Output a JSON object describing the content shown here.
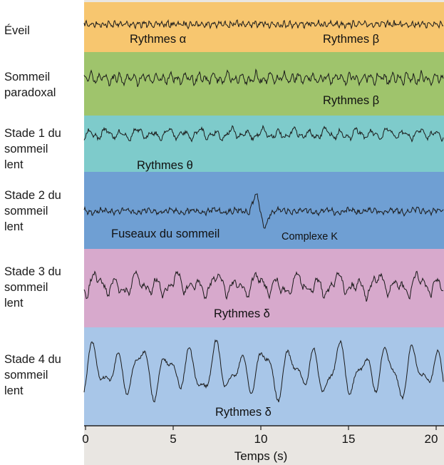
{
  "rows": [
    {
      "id": "eveil",
      "label": "Éveil",
      "color": "#f7c66f",
      "band_labels": [
        "Rythmes α",
        "Rythmes β"
      ]
    },
    {
      "id": "paradoxal",
      "label": "Sommeil\nparadoxal",
      "color": "#9fc46c",
      "band_labels": [
        "Rythmes β"
      ]
    },
    {
      "id": "stade1",
      "label": "Stade 1 du\nsommeil\nlent",
      "color": "#7ecbcb",
      "band_labels": [
        "Rythmes θ"
      ]
    },
    {
      "id": "stade2",
      "label": "Stade 2 du\nsommeil\nlent",
      "color": "#6f9fd3",
      "band_labels": [
        "Fuseaux du sommeil",
        "Complexe K"
      ]
    },
    {
      "id": "stade3",
      "label": "Stade 3 du\nsommeil\nlent",
      "color": "#d7a9cc",
      "band_labels": [
        "Rythmes δ"
      ]
    },
    {
      "id": "stade4",
      "label": "Stade 4 du\nsommeil\nlent",
      "color": "#a8c6e8",
      "band_labels": [
        "Rythmes δ"
      ]
    }
  ],
  "axis": {
    "title": "Temps (s)",
    "ticks": [
      "0",
      "5",
      "10",
      "15",
      "20"
    ],
    "min": 0,
    "max": 20
  }
}
